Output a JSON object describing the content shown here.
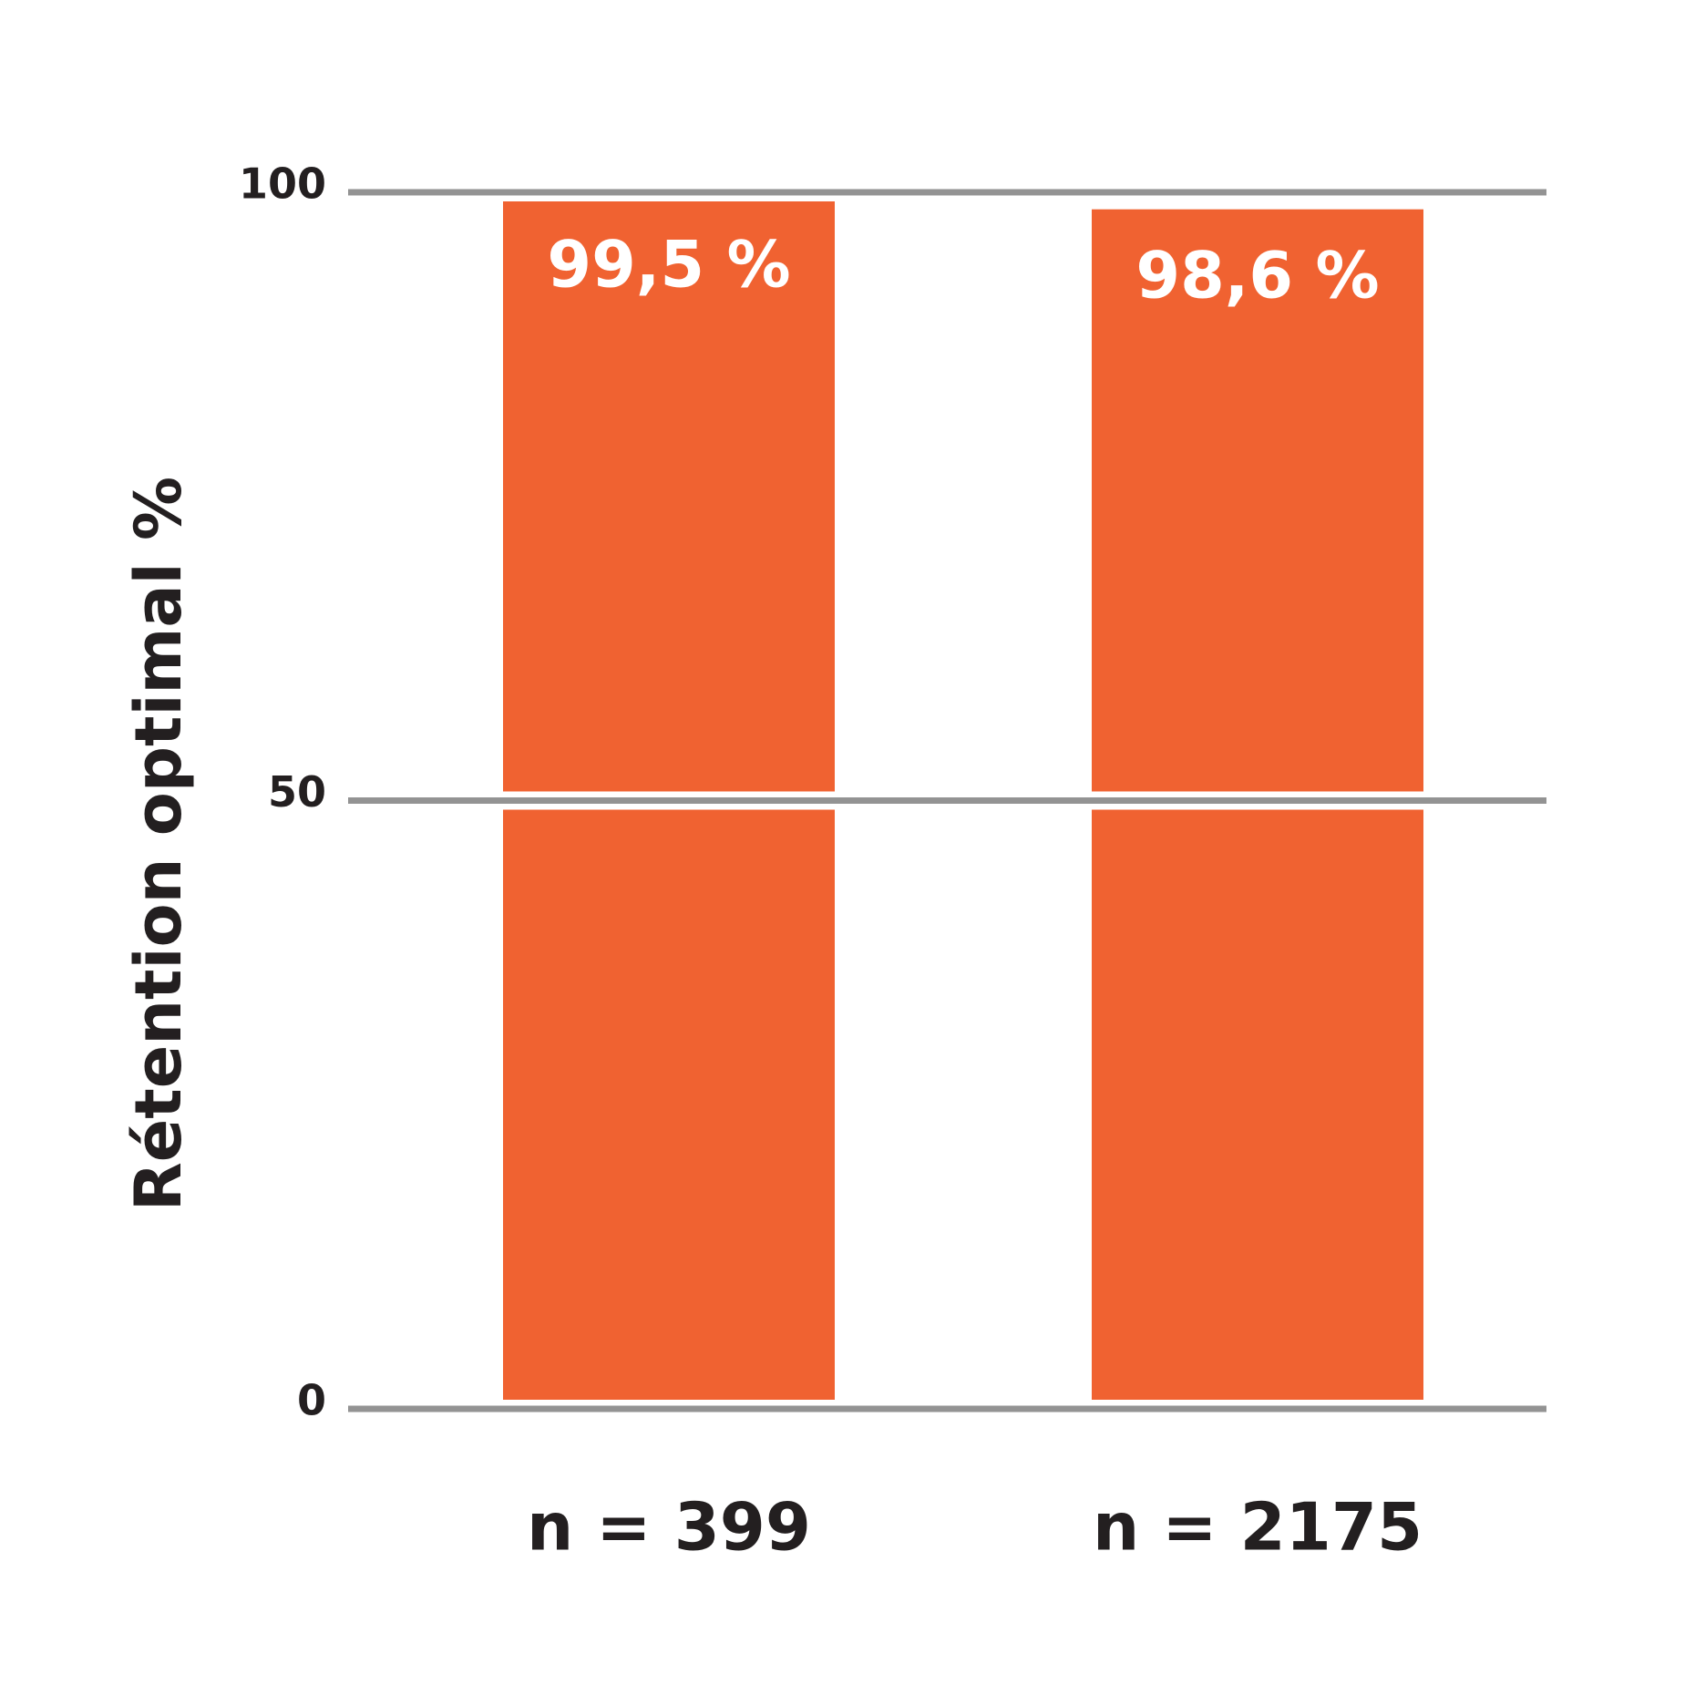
{
  "chart_data": {
    "type": "bar",
    "y_label": "Rétention optimal %",
    "categories": [
      "n = 399",
      "n = 2175"
    ],
    "values": [
      99.5,
      98.6
    ],
    "value_labels": [
      "99,5 %",
      "98,6 %"
    ],
    "color": "#f06231",
    "ylim": [
      0,
      100
    ],
    "yticks": [
      0,
      50,
      100
    ],
    "grid": true
  }
}
